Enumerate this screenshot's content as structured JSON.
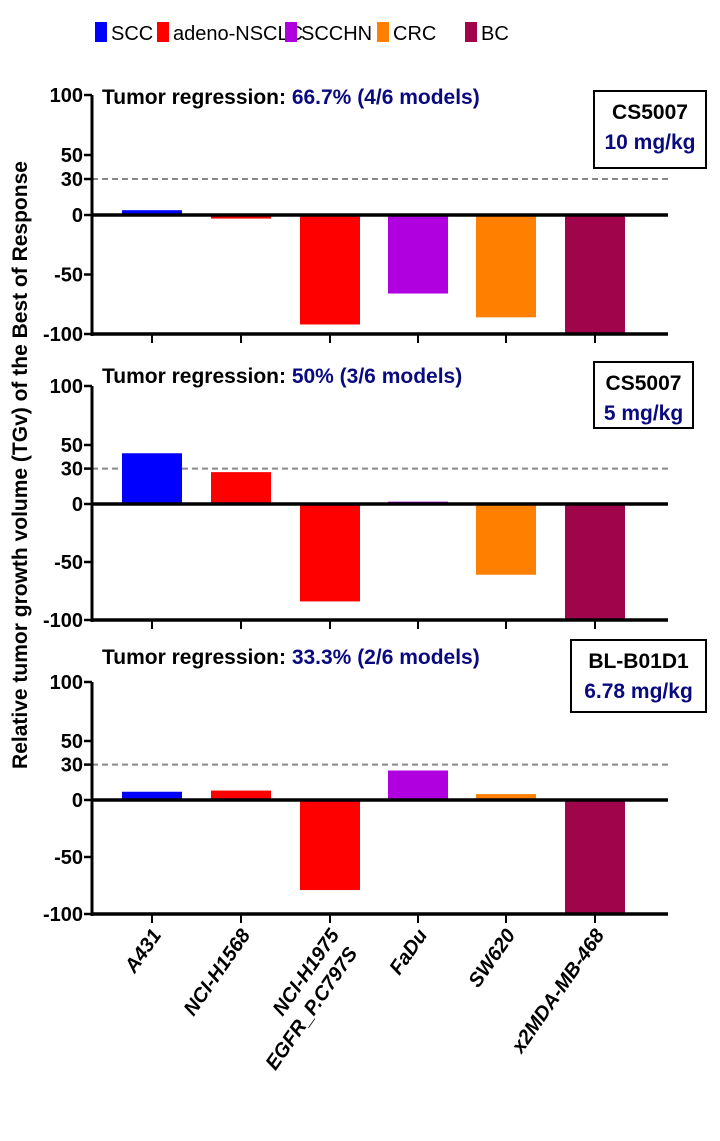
{
  "chart_data": {
    "type": "bar",
    "ylabel": "Relative tumor growth volume (TGv) of the Best of Response",
    "categories": [
      "A431",
      "NCI-H1568",
      "NCI-H1975\nEGFR_P.C797S",
      "FaDu",
      "SW620",
      "x2MDA-MB-468"
    ],
    "category_groups": [
      "SCC",
      "adeno-NSCLC",
      "adeno-NSCLC",
      "SCCHN",
      "CRC",
      "BC"
    ],
    "legend": {
      "placement": "top",
      "entries": [
        {
          "label": "SCC",
          "color": "#0000ff"
        },
        {
          "label": "adeno-NSCLC",
          "color": "#ff0000"
        },
        {
          "label": "SCCHN",
          "color": "#b000e0"
        },
        {
          "label": "CRC",
          "color": "#ff8000"
        },
        {
          "label": "BC",
          "color": "#a0044a"
        }
      ]
    },
    "yticks": [
      100,
      50,
      30,
      0,
      -50,
      -100
    ],
    "ylim": [
      -100,
      100
    ],
    "reference_line": {
      "value": 30,
      "style": "dashed"
    },
    "panels": [
      {
        "title_prefix": "Tumor regression: ",
        "title_value": "66.7% (4/6 models)",
        "drug": "CS5007",
        "dose": "10 mg/kg",
        "values": [
          4,
          -3,
          -92,
          -66,
          -86,
          -100
        ]
      },
      {
        "title_prefix": "Tumor regression: ",
        "title_value": "50% (3/6 models)",
        "drug": "CS5007",
        "dose": "5 mg/kg",
        "values": [
          43,
          27,
          -84,
          2,
          -61,
          -100
        ]
      },
      {
        "title_prefix": "Tumor regression: ",
        "title_value": "33.3% (2/6 models)",
        "drug": "BL-B01D1",
        "dose": "6.78 mg/kg",
        "values": [
          7,
          8,
          -79,
          25,
          5,
          -100
        ]
      }
    ]
  }
}
